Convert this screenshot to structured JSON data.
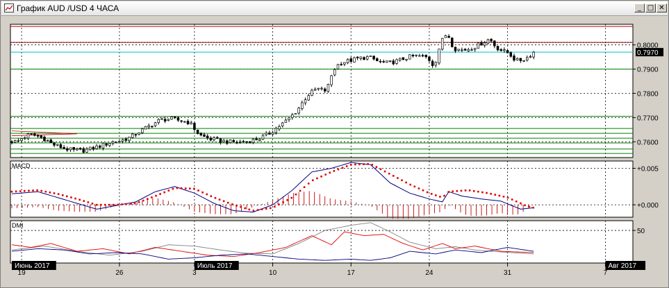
{
  "window": {
    "title": "График AUD /USD  4 ЧАСА",
    "buttons": [
      {
        "name": "minimize-button",
        "glyph": "_"
      },
      {
        "name": "maximize-button",
        "glyph": "□"
      },
      {
        "name": "close-button",
        "glyph": "✕"
      }
    ]
  },
  "colors": {
    "background": "#ffffff",
    "candle": "#000000",
    "support_lines": "#008000",
    "resistance_lines": "#c00000",
    "current_price": "#00c0c0",
    "macd_line": "#000080",
    "macd_signal": "#e00000",
    "macd_hist": "#c00000",
    "dmi_adx": "#808080",
    "dmi_plus": "#e00000",
    "dmi_minus": "#000080"
  },
  "chart_data": [
    {
      "type": "candlestick",
      "title": "",
      "ylim": [
        0.7535,
        0.8085
      ],
      "y_ticks": [
        {
          "value": 0.8,
          "label": "0.8000"
        },
        {
          "value": 0.79,
          "label": "0.7900"
        },
        {
          "value": 0.78,
          "label": "0.7800"
        },
        {
          "value": 0.77,
          "label": "0.7700"
        },
        {
          "value": 0.76,
          "label": "0.7600"
        }
      ],
      "current_price": {
        "value": 0.797,
        "label": "0.7970"
      },
      "horizontal_levels": [
        {
          "value": 0.8076,
          "kind": "resistance"
        },
        {
          "value": 0.801,
          "kind": "resistance"
        },
        {
          "value": 0.79,
          "kind": "support"
        },
        {
          "value": 0.7705,
          "kind": "support"
        },
        {
          "value": 0.7655,
          "kind": "support"
        },
        {
          "value": 0.7635,
          "kind": "support"
        },
        {
          "value": 0.7615,
          "kind": "support"
        },
        {
          "value": 0.7595,
          "kind": "support"
        },
        {
          "value": 0.757,
          "kind": "support"
        },
        {
          "value": 0.7552,
          "kind": "support"
        }
      ],
      "close_path": [
        [
          0,
          0.7602
        ],
        [
          2,
          0.76
        ],
        [
          4,
          0.7618
        ],
        [
          6,
          0.763
        ],
        [
          8,
          0.7625
        ],
        [
          11,
          0.761
        ],
        [
          13,
          0.759
        ],
        [
          16,
          0.7575
        ],
        [
          19,
          0.7565
        ],
        [
          22,
          0.7563
        ],
        [
          25,
          0.7572
        ],
        [
          28,
          0.7585
        ],
        [
          31,
          0.7598
        ],
        [
          34,
          0.7605
        ],
        [
          37,
          0.762
        ],
        [
          40,
          0.7645
        ],
        [
          43,
          0.7668
        ],
        [
          46,
          0.769
        ],
        [
          49,
          0.7695
        ],
        [
          52,
          0.7688
        ],
        [
          55,
          0.768
        ],
        [
          58,
          0.7628
        ],
        [
          61,
          0.7612
        ],
        [
          64,
          0.7605
        ],
        [
          67,
          0.76
        ],
        [
          70,
          0.7598
        ],
        [
          73,
          0.7602
        ],
        [
          76,
          0.7612
        ],
        [
          79,
          0.763
        ],
        [
          82,
          0.766
        ],
        [
          85,
          0.769
        ],
        [
          88,
          0.773
        ],
        [
          91,
          0.779
        ],
        [
          94,
          0.782
        ],
        [
          97,
          0.781
        ],
        [
          99,
          0.7895
        ],
        [
          101,
          0.7925
        ],
        [
          104,
          0.7935
        ],
        [
          107,
          0.7945
        ],
        [
          110,
          0.795
        ],
        [
          113,
          0.793
        ],
        [
          116,
          0.7925
        ],
        [
          119,
          0.7935
        ],
        [
          122,
          0.795
        ],
        [
          125,
          0.7955
        ],
        [
          128,
          0.7948
        ],
        [
          130,
          0.791
        ],
        [
          132,
          0.801
        ],
        [
          134,
          0.805
        ],
        [
          136,
          0.7985
        ],
        [
          139,
          0.7978
        ],
        [
          142,
          0.799
        ],
        [
          145,
          0.801
        ],
        [
          147,
          0.8025
        ],
        [
          149,
          0.799
        ],
        [
          151,
          0.7975
        ],
        [
          153,
          0.7965
        ],
        [
          155,
          0.7935
        ],
        [
          157,
          0.7938
        ],
        [
          159,
          0.795
        ],
        [
          160,
          0.797
        ]
      ],
      "bars_total": 190
    },
    {
      "type": "line",
      "title": "MACD",
      "ylim": [
        -0.0017,
        0.006
      ],
      "y_ticks": [
        {
          "value": 0.005,
          "label": "+0.005"
        },
        {
          "value": 0.0,
          "label": "+0.000"
        }
      ],
      "series": [
        {
          "role": "macd",
          "points": [
            [
              0,
              0.0015
            ],
            [
              8,
              0.0018
            ],
            [
              14,
              0.001
            ],
            [
              20,
              0.0002
            ],
            [
              26,
              -0.0006
            ],
            [
              32,
              -0.0001
            ],
            [
              38,
              0.0004
            ],
            [
              44,
              0.0018
            ],
            [
              50,
              0.0025
            ],
            [
              56,
              0.0016
            ],
            [
              62,
              0.0002
            ],
            [
              68,
              -0.0008
            ],
            [
              74,
              -0.001
            ],
            [
              80,
              0.0
            ],
            [
              86,
              0.002
            ],
            [
              92,
              0.0045
            ],
            [
              98,
              0.005
            ],
            [
              104,
              0.0058
            ],
            [
              110,
              0.0055
            ],
            [
              116,
              0.003
            ],
            [
              122,
              0.0016
            ],
            [
              128,
              0.0008
            ],
            [
              132,
              0.0004
            ],
            [
              134,
              0.0018
            ],
            [
              138,
              0.0012
            ],
            [
              144,
              0.0008
            ],
            [
              150,
              0.0005
            ],
            [
              156,
              -0.0006
            ],
            [
              160,
              -0.0004
            ]
          ]
        },
        {
          "role": "signal",
          "points": [
            [
              0,
              0.0018
            ],
            [
              8,
              0.002
            ],
            [
              14,
              0.0015
            ],
            [
              20,
              0.0008
            ],
            [
              26,
              0.0
            ],
            [
              32,
              0.0
            ],
            [
              38,
              0.0002
            ],
            [
              44,
              0.0012
            ],
            [
              50,
              0.0023
            ],
            [
              56,
              0.0022
            ],
            [
              62,
              0.001
            ],
            [
              68,
              0.0
            ],
            [
              74,
              -0.0008
            ],
            [
              80,
              -0.0004
            ],
            [
              86,
              0.001
            ],
            [
              92,
              0.0033
            ],
            [
              98,
              0.0045
            ],
            [
              104,
              0.0055
            ],
            [
              110,
              0.0056
            ],
            [
              116,
              0.0042
            ],
            [
              122,
              0.0028
            ],
            [
              128,
              0.0016
            ],
            [
              132,
              0.001
            ],
            [
              134,
              0.0018
            ],
            [
              140,
              0.002
            ],
            [
              146,
              0.0016
            ],
            [
              152,
              0.001
            ],
            [
              158,
              -0.0002
            ],
            [
              160,
              -0.0004
            ]
          ]
        }
      ]
    },
    {
      "type": "line",
      "title": "DMI",
      "ylim": [
        0,
        65
      ],
      "y_ticks": [
        {
          "value": 50,
          "label": "50"
        }
      ],
      "series": [
        {
          "role": "adx",
          "points": [
            [
              0,
              20
            ],
            [
              10,
              26
            ],
            [
              20,
              18
            ],
            [
              30,
              12
            ],
            [
              40,
              18
            ],
            [
              48,
              28
            ],
            [
              56,
              26
            ],
            [
              64,
              20
            ],
            [
              72,
              15
            ],
            [
              80,
              14
            ],
            [
              88,
              30
            ],
            [
              96,
              50
            ],
            [
              104,
              58
            ],
            [
              110,
              62
            ],
            [
              116,
              48
            ],
            [
              122,
              32
            ],
            [
              130,
              22
            ],
            [
              136,
              25
            ],
            [
              142,
              20
            ],
            [
              150,
              17
            ],
            [
              160,
              14
            ]
          ]
        },
        {
          "role": "plus_di",
          "points": [
            [
              0,
              28
            ],
            [
              6,
              24
            ],
            [
              12,
              30
            ],
            [
              20,
              18
            ],
            [
              28,
              22
            ],
            [
              36,
              14
            ],
            [
              44,
              24
            ],
            [
              52,
              18
            ],
            [
              60,
              12
            ],
            [
              68,
              10
            ],
            [
              76,
              16
            ],
            [
              84,
              24
            ],
            [
              92,
              42
            ],
            [
              98,
              28
            ],
            [
              102,
              48
            ],
            [
              108,
              42
            ],
            [
              114,
              44
            ],
            [
              120,
              30
            ],
            [
              126,
              20
            ],
            [
              132,
              30
            ],
            [
              136,
              22
            ],
            [
              142,
              26
            ],
            [
              150,
              18
            ],
            [
              160,
              16
            ]
          ]
        },
        {
          "role": "minus_di",
          "points": [
            [
              0,
              18
            ],
            [
              8,
              22
            ],
            [
              16,
              20
            ],
            [
              24,
              14
            ],
            [
              32,
              16
            ],
            [
              40,
              14
            ],
            [
              48,
              6
            ],
            [
              56,
              8
            ],
            [
              64,
              12
            ],
            [
              72,
              14
            ],
            [
              80,
              10
            ],
            [
              88,
              6
            ],
            [
              96,
              4
            ],
            [
              104,
              6
            ],
            [
              110,
              4
            ],
            [
              116,
              8
            ],
            [
              122,
              18
            ],
            [
              130,
              14
            ],
            [
              136,
              20
            ],
            [
              144,
              16
            ],
            [
              152,
              24
            ],
            [
              160,
              18
            ]
          ]
        }
      ]
    }
  ],
  "time_axis": {
    "ticks": [
      {
        "bar": 3,
        "label": "19"
      },
      {
        "bar": 33,
        "label": "26"
      },
      {
        "bar": 56,
        "label": "3"
      },
      {
        "bar": 80,
        "label": "10"
      },
      {
        "bar": 104,
        "label": "17"
      },
      {
        "bar": 128,
        "label": "24"
      },
      {
        "bar": 152,
        "label": "31"
      },
      {
        "bar": 182,
        "label": "7"
      }
    ],
    "period_labels": [
      {
        "bar": 0,
        "label": "Июнь 2017"
      },
      {
        "bar": 56,
        "label": "Июль 2017"
      },
      {
        "bar": 182,
        "label": "Авг 2017"
      }
    ]
  }
}
